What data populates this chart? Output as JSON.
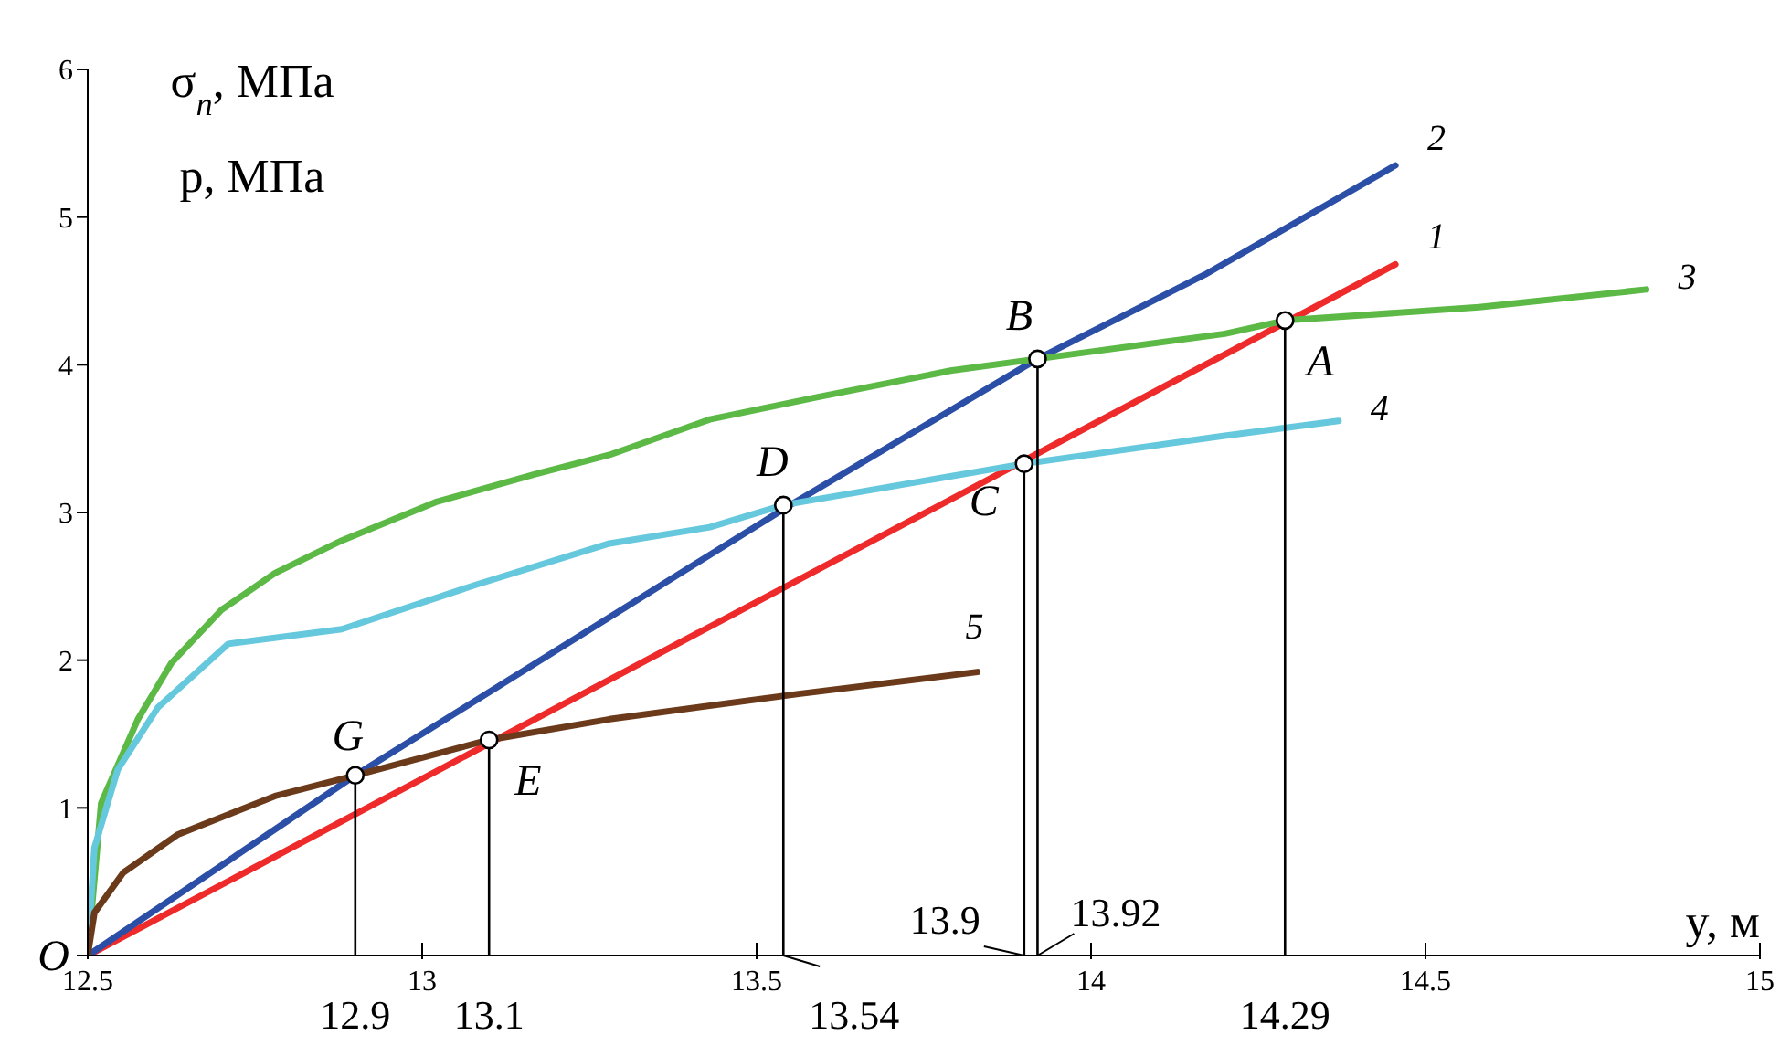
{
  "chart_data": {
    "type": "line",
    "xlabel": "y, м",
    "ylabel": "σ$_{n}$, МПа\np, МПа",
    "xlim": [
      12.5,
      15
    ],
    "ylim": [
      0,
      6
    ],
    "xticks": [
      12.5,
      13,
      13.5,
      14,
      14.5,
      15
    ],
    "yticks": [
      {
        "value": 0,
        "label": null
      },
      1,
      2,
      3,
      4,
      5,
      6
    ],
    "grid": false,
    "legend": false,
    "marker": "none",
    "line_style": "solid",
    "series": [
      {
        "name": "1",
        "color": "#ee2a2a",
        "x": [
          12.5,
          14.455
        ],
        "values": [
          0,
          4.68
        ]
      },
      {
        "name": "2",
        "color": "#2b4ea6",
        "x": [
          12.5,
          12.9,
          13.55,
          13.92,
          14.17,
          14.455
        ],
        "values": [
          0,
          1.22,
          3.05,
          4.04,
          4.61,
          5.35
        ]
      },
      {
        "name": "3",
        "color": "#5cb946",
        "x": [
          12.5,
          12.52,
          12.575,
          12.625,
          12.7,
          12.78,
          12.88,
          13.02,
          13.17,
          13.28,
          13.43,
          13.59,
          13.79,
          13.92,
          14.2,
          14.29,
          14.58,
          14.83
        ],
        "values": [
          0,
          1.03,
          1.6,
          1.98,
          2.34,
          2.59,
          2.81,
          3.07,
          3.26,
          3.39,
          3.63,
          3.78,
          3.96,
          4.04,
          4.21,
          4.3,
          4.39,
          4.51
        ]
      },
      {
        "name": "4",
        "color": "#66c8dc",
        "x": [
          12.5,
          12.51,
          12.545,
          12.605,
          12.71,
          12.88,
          13.08,
          13.28,
          13.43,
          13.54,
          13.9,
          14.2,
          14.37
        ],
        "values": [
          0,
          0.73,
          1.26,
          1.68,
          2.11,
          2.21,
          2.51,
          2.79,
          2.9,
          3.05,
          3.33,
          3.52,
          3.62
        ]
      },
      {
        "name": "5",
        "color": "#6b3a1a",
        "x": [
          12.5,
          12.51,
          12.553,
          12.635,
          12.78,
          12.9,
          13.1,
          13.28,
          13.56,
          13.83
        ],
        "values": [
          0,
          0.29,
          0.56,
          0.82,
          1.08,
          1.22,
          1.46,
          1.6,
          1.77,
          1.92
        ]
      },
      {
        "type": "lollipop",
        "color": "#000000",
        "marker": "circle",
        "x": [
          12.9,
          13.1,
          13.54,
          13.9,
          13.92,
          14.29
        ],
        "values": [
          1.22,
          1.46,
          3.05,
          3.33,
          4.04,
          4.3
        ]
      }
    ],
    "annotations": [
      {
        "text": "O",
        "x": 12.5,
        "y": 0
      },
      {
        "text": "G",
        "x": 12.9,
        "y": 1.22
      },
      {
        "text": "E",
        "x": 13.1,
        "y": 1.46
      },
      {
        "text": "D",
        "x": 13.54,
        "y": 3.05
      },
      {
        "text": "C",
        "x": 13.9,
        "y": 3.33
      },
      {
        "text": "B",
        "x": 13.92,
        "y": 4.04
      },
      {
        "text": "A",
        "x": 14.29,
        "y": 4.3
      },
      "12.9",
      "13.1",
      "13.54",
      "13.9",
      "13.92",
      "14.29"
    ]
  }
}
